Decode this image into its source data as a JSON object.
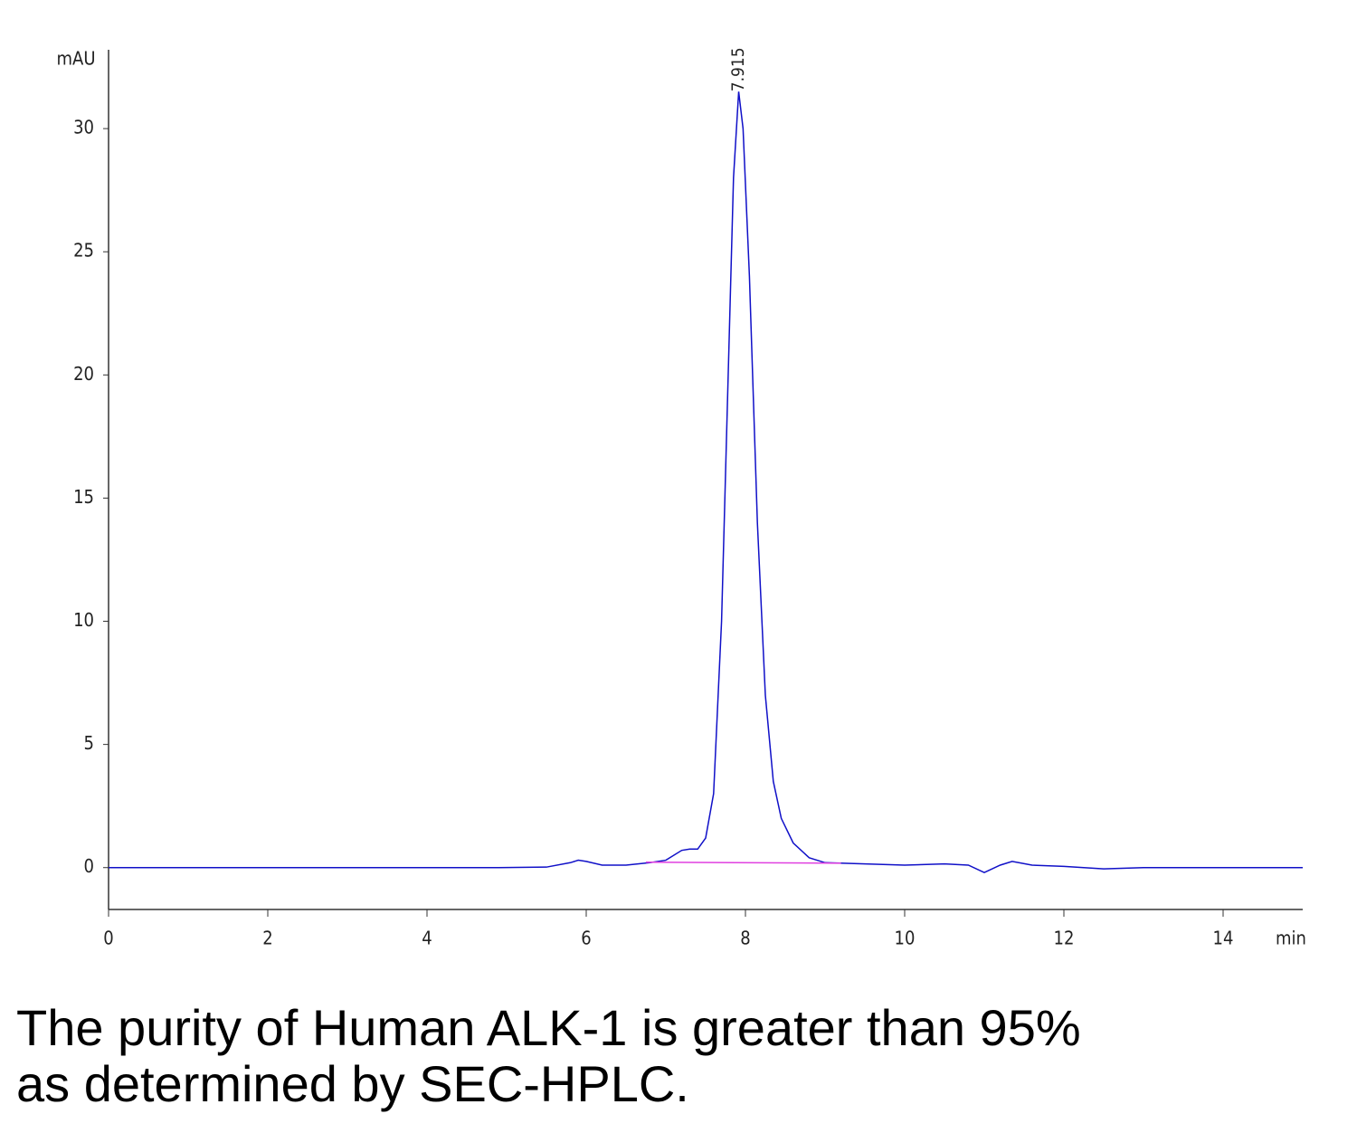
{
  "chart_data": {
    "type": "line",
    "y_label": "mAU",
    "x_label": "min",
    "xlim": [
      0,
      15
    ],
    "ylim": [
      -1.7,
      33.2
    ],
    "xticks": [
      0,
      2,
      4,
      6,
      8,
      10,
      12,
      14
    ],
    "yticks": [
      0,
      5,
      10,
      15,
      20,
      25,
      30
    ],
    "series": [
      {
        "color": "#1010c8",
        "x": [
          0,
          4.9,
          5.5,
          5.8,
          5.9,
          6.0,
          6.2,
          6.5,
          6.8,
          7.0,
          7.2,
          7.3,
          7.4,
          7.5,
          7.6,
          7.7,
          7.8,
          7.85,
          7.915,
          7.97,
          8.05,
          8.15,
          8.25,
          8.35,
          8.45,
          8.6,
          8.8,
          9.0,
          9.5,
          10.0,
          10.5,
          10.8,
          11.0,
          11.2,
          11.35,
          11.6,
          12.0,
          12.5,
          13.0,
          15.0
        ],
        "values": [
          0,
          0,
          0.02,
          0.2,
          0.3,
          0.25,
          0.1,
          0.1,
          0.2,
          0.3,
          0.7,
          0.75,
          0.75,
          1.2,
          3,
          10,
          22,
          28,
          31.5,
          30,
          24,
          14,
          7,
          3.5,
          2,
          1,
          0.4,
          0.2,
          0.15,
          0.1,
          0.15,
          0.1,
          -0.2,
          0.1,
          0.25,
          0.1,
          0.05,
          -0.05,
          0,
          0
        ]
      },
      {
        "color": "#e040e0",
        "x": [
          6.75,
          9.2
        ],
        "values": [
          0.22,
          0.18
        ]
      }
    ],
    "annotations": [
      {
        "x": 7.915,
        "y": 31.5
      }
    ],
    "caption": "The purity of Human ALK-1 is greater than 95% as determined by SEC-HPLC."
  }
}
